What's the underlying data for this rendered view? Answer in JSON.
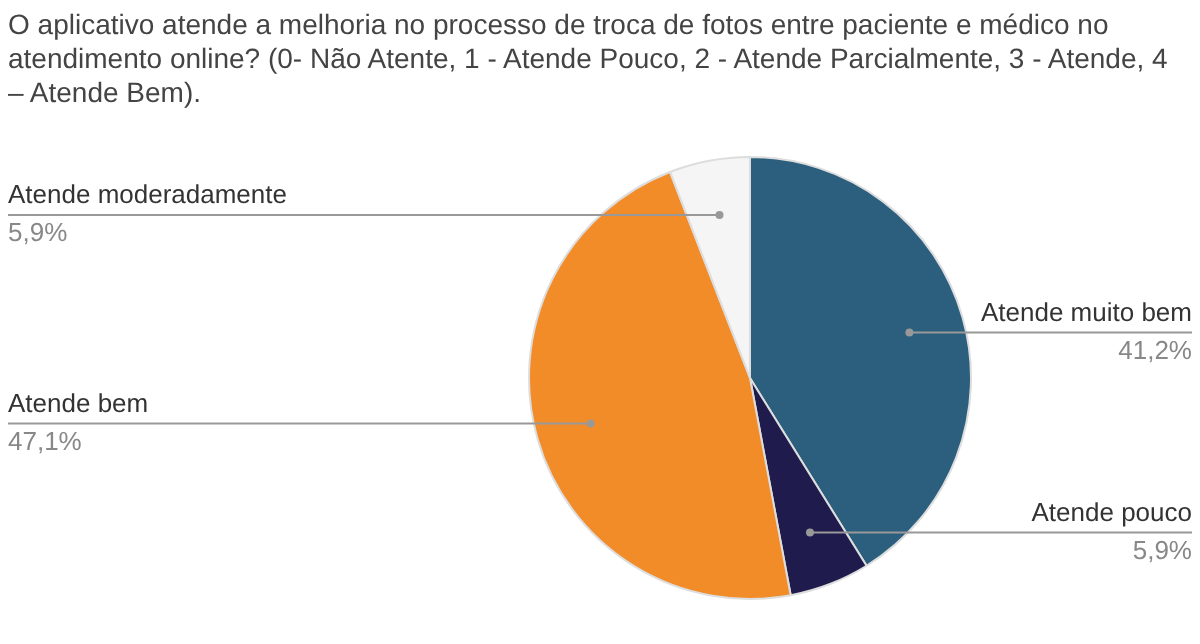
{
  "chart_data": {
    "type": "pie",
    "title": "O aplicativo atende a melhoria no processo de troca de fotos entre paciente e médico no atendimento online? (0- Não Atente, 1 - Atende Pouco, 2 - Atende Parcialmente, 3 - Atende, 4 – Atende Bem).",
    "categories": [
      "Atende muito bem",
      "Atende pouco",
      "Atende bem",
      "Atende moderadamente"
    ],
    "values": [
      41.2,
      5.9,
      47.1,
      5.9
    ],
    "value_labels": [
      "41,2%",
      "5,9%",
      "47,1%",
      "5,9%"
    ],
    "colors": [
      "#2b5f7d",
      "#1f1b4d",
      "#f28c28",
      "#f5f5f5"
    ],
    "legend": false
  }
}
